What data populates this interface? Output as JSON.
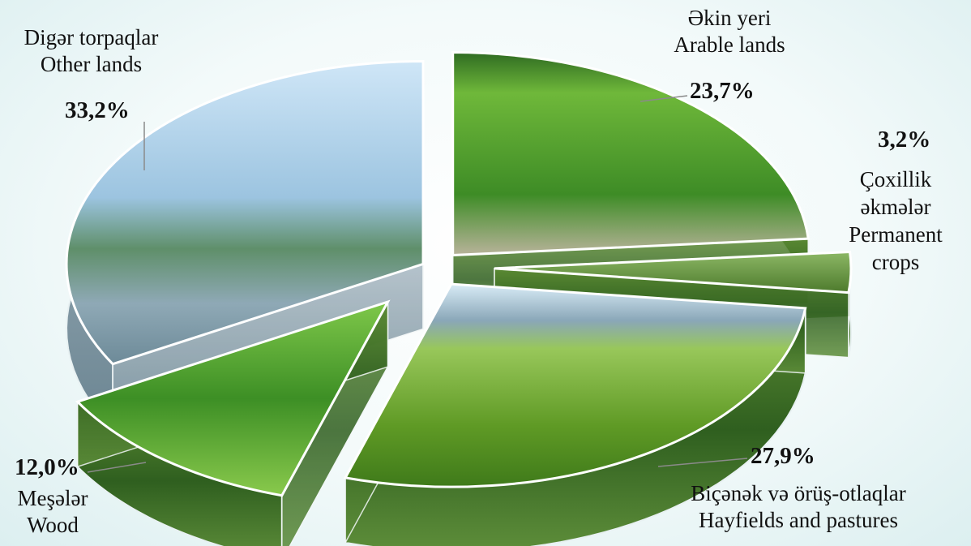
{
  "chart_data": {
    "type": "pie",
    "style": "3d-exploded",
    "slices": [
      {
        "label_az": "Əkin yeri",
        "label_en": "Arable lands",
        "value": 23.7,
        "value_label": "23,7%",
        "color": "#4f9a2c"
      },
      {
        "label_az": "Çoxillik əkmələr",
        "label_en": "Permanent crops",
        "value": 3.2,
        "value_label": "3,2%",
        "color": "#6a8f3a"
      },
      {
        "label_az": "Biçənək və örüş-otlaqlar",
        "label_en": "Hayfields and pastures",
        "value": 27.9,
        "value_label": "27,9%",
        "color": "#7fb23a"
      },
      {
        "label_az": "Meşələr",
        "label_en": "Wood",
        "value": 12.0,
        "value_label": "12,0%",
        "color": "#3f9e2e"
      },
      {
        "label_az": "Digər torpaqlar",
        "label_en": "Other lands",
        "value": 33.2,
        "value_label": "33,2%",
        "color": "#7fa6c8"
      }
    ]
  }
}
